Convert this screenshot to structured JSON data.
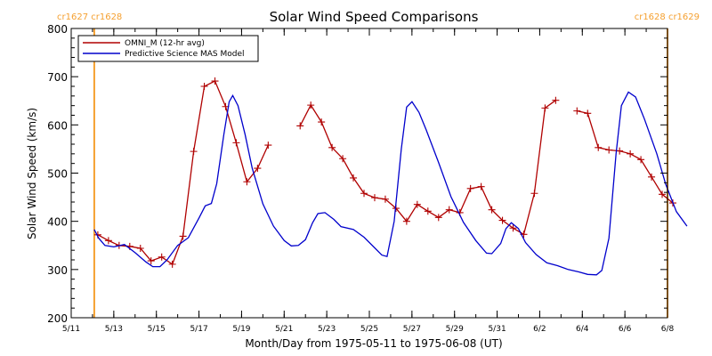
{
  "chart_data": {
    "type": "line",
    "title": "Solar Wind Speed Comparisons",
    "xlabel": "Month/Day from 1975-05-11 to 1975-06-08 (UT)",
    "ylabel": "Solar Wind Speed (km/s)",
    "xlim": [
      "1975-05-11",
      "1975-06-08"
    ],
    "ylim": [
      200,
      800
    ],
    "yticks": [
      200,
      300,
      400,
      500,
      600,
      700,
      800
    ],
    "xtick_labels": [
      {
        "date": "1975-05-11",
        "label": "5/11"
      },
      {
        "date": "1975-05-13",
        "label": "5/13"
      },
      {
        "date": "1975-05-15",
        "label": "5/15"
      },
      {
        "date": "1975-05-17",
        "label": "5/17"
      },
      {
        "date": "1975-05-19",
        "label": "5/19"
      },
      {
        "date": "1975-05-21",
        "label": "5/21"
      },
      {
        "date": "1975-05-23",
        "label": "5/23"
      },
      {
        "date": "1975-05-25",
        "label": "5/25"
      },
      {
        "date": "1975-05-27",
        "label": "5/27"
      },
      {
        "date": "1975-05-29",
        "label": "5/29"
      },
      {
        "date": "1975-05-31",
        "label": "5/31"
      },
      {
        "date": "1975-06-02",
        "label": "6/2"
      },
      {
        "date": "1975-06-04",
        "label": "6/4"
      },
      {
        "date": "1975-06-06",
        "label": "6/6"
      },
      {
        "date": "1975-06-08",
        "label": "6/8"
      }
    ],
    "legend_position": "top-left",
    "grid": false,
    "carrington_markers": [
      {
        "date": "1975-05-12 02:00",
        "label": "cr1627 cr1628",
        "label_side": "left",
        "color": "#f5a030"
      },
      {
        "date": "1975-06-08 00:00",
        "label": "cr1628 cr1629",
        "label_side": "right",
        "color": "#f5a030"
      }
    ],
    "series": [
      {
        "name": "OMNI_M (12-hr avg)",
        "color": "#b00000",
        "marker": "+",
        "segments": [
          [
            [
              "1975-05-12 06:00",
              372
            ],
            [
              "1975-05-12 18:00",
              360
            ],
            [
              "1975-05-13 06:00",
              350
            ],
            [
              "1975-05-13 18:00",
              348
            ],
            [
              "1975-05-14 06:00",
              344
            ],
            [
              "1975-05-14 18:00",
              318
            ],
            [
              "1975-05-15 06:00",
              326
            ],
            [
              "1975-05-15 18:00",
              311
            ],
            [
              "1975-05-16 06:00",
              369
            ],
            [
              "1975-05-16 18:00",
              545
            ],
            [
              "1975-05-17 06:00",
              680
            ],
            [
              "1975-05-17 18:00",
              691
            ],
            [
              "1975-05-18 06:00",
              638
            ],
            [
              "1975-05-18 18:00",
              563
            ],
            [
              "1975-05-19 06:00",
              482
            ],
            [
              "1975-05-19 18:00",
              510
            ],
            [
              "1975-05-20 06:00",
              558
            ]
          ],
          [
            [
              "1975-05-21 18:00",
              598
            ],
            [
              "1975-05-22 06:00",
              641
            ],
            [
              "1975-05-22 18:00",
              606
            ],
            [
              "1975-05-23 06:00",
              553
            ],
            [
              "1975-05-23 18:00",
              530
            ],
            [
              "1975-05-24 06:00",
              490
            ],
            [
              "1975-05-24 18:00",
              458
            ],
            [
              "1975-05-25 06:00",
              449
            ],
            [
              "1975-05-25 18:00",
              446
            ],
            [
              "1975-05-26 06:00",
              427
            ],
            [
              "1975-05-26 18:00",
              400
            ],
            [
              "1975-05-27 06:00",
              435
            ],
            [
              "1975-05-27 18:00",
              421
            ],
            [
              "1975-05-28 06:00",
              408
            ],
            [
              "1975-05-28 18:00",
              424
            ],
            [
              "1975-05-29 06:00",
              418
            ],
            [
              "1975-05-29 18:00",
              468
            ],
            [
              "1975-05-30 06:00",
              472
            ],
            [
              "1975-05-30 18:00",
              424
            ],
            [
              "1975-05-31 06:00",
              402
            ],
            [
              "1975-05-31 18:00",
              386
            ],
            [
              "1975-06-01 06:00",
              373
            ],
            [
              "1975-06-01 18:00",
              458
            ],
            [
              "1975-06-02 06:00",
              635
            ],
            [
              "1975-06-02 18:00",
              651
            ]
          ],
          [
            [
              "1975-06-03 18:00",
              629
            ],
            [
              "1975-06-04 06:00",
              624
            ],
            [
              "1975-06-04 18:00",
              553
            ],
            [
              "1975-06-05 06:00",
              548
            ],
            [
              "1975-06-05 18:00",
              546
            ],
            [
              "1975-06-06 06:00",
              540
            ],
            [
              "1975-06-06 18:00",
              528
            ],
            [
              "1975-06-07 06:00",
              492
            ],
            [
              "1975-06-07 18:00",
              456
            ],
            [
              "1975-06-08 06:00",
              438
            ]
          ]
        ]
      },
      {
        "name": "Predictive Science MAS Model",
        "color": "#0000cc",
        "marker": "none",
        "points": [
          [
            "1975-05-12 02:00",
            383
          ],
          [
            "1975-05-12 07:00",
            365
          ],
          [
            "1975-05-12 14:00",
            350
          ],
          [
            "1975-05-13 00:00",
            347
          ],
          [
            "1975-05-13 12:00",
            352
          ],
          [
            "1975-05-14 00:00",
            335
          ],
          [
            "1975-05-14 12:00",
            316
          ],
          [
            "1975-05-14 20:00",
            306
          ],
          [
            "1975-05-15 04:00",
            306
          ],
          [
            "1975-05-15 12:00",
            320
          ],
          [
            "1975-05-16 00:00",
            350
          ],
          [
            "1975-05-16 12:00",
            366
          ],
          [
            "1975-05-17 00:00",
            407
          ],
          [
            "1975-05-17 07:00",
            432
          ],
          [
            "1975-05-17 14:00",
            437
          ],
          [
            "1975-05-17 20:00",
            478
          ],
          [
            "1975-05-18 04:00",
            580
          ],
          [
            "1975-05-18 10:00",
            648
          ],
          [
            "1975-05-18 14:00",
            661
          ],
          [
            "1975-05-18 20:00",
            640
          ],
          [
            "1975-05-19 04:00",
            580
          ],
          [
            "1975-05-19 12:00",
            510
          ],
          [
            "1975-05-20 00:00",
            436
          ],
          [
            "1975-05-20 12:00",
            390
          ],
          [
            "1975-05-21 00:00",
            360
          ],
          [
            "1975-05-21 08:00",
            349
          ],
          [
            "1975-05-21 16:00",
            350
          ],
          [
            "1975-05-22 00:00",
            362
          ],
          [
            "1975-05-22 08:00",
            397
          ],
          [
            "1975-05-22 14:00",
            416
          ],
          [
            "1975-05-22 22:00",
            418
          ],
          [
            "1975-05-23 08:00",
            404
          ],
          [
            "1975-05-23 16:00",
            389
          ],
          [
            "1975-05-24 06:00",
            383
          ],
          [
            "1975-05-24 18:00",
            367
          ],
          [
            "1975-05-25 06:00",
            345
          ],
          [
            "1975-05-25 14:00",
            330
          ],
          [
            "1975-05-25 20:00",
            327
          ],
          [
            "1975-05-26 04:00",
            400
          ],
          [
            "1975-05-26 12:00",
            550
          ],
          [
            "1975-05-26 18:00",
            637
          ],
          [
            "1975-05-27 00:00",
            648
          ],
          [
            "1975-05-27 08:00",
            626
          ],
          [
            "1975-05-27 16:00",
            590
          ],
          [
            "1975-05-28 06:00",
            522
          ],
          [
            "1975-05-28 20:00",
            451
          ],
          [
            "1975-05-29 10:00",
            398
          ],
          [
            "1975-05-30 00:00",
            360
          ],
          [
            "1975-05-30 12:00",
            334
          ],
          [
            "1975-05-30 18:00",
            333
          ],
          [
            "1975-05-31 04:00",
            354
          ],
          [
            "1975-05-31 10:00",
            385
          ],
          [
            "1975-05-31 16:00",
            397
          ],
          [
            "1975-06-01 00:00",
            385
          ],
          [
            "1975-06-01 08:00",
            356
          ],
          [
            "1975-06-01 20:00",
            331
          ],
          [
            "1975-06-02 08:00",
            314
          ],
          [
            "1975-06-02 20:00",
            308
          ],
          [
            "1975-06-03 08:00",
            300
          ],
          [
            "1975-06-03 20:00",
            295
          ],
          [
            "1975-06-04 06:00",
            290
          ],
          [
            "1975-06-04 16:00",
            289
          ],
          [
            "1975-06-04 22:00",
            298
          ],
          [
            "1975-06-05 06:00",
            365
          ],
          [
            "1975-06-05 14:00",
            540
          ],
          [
            "1975-06-05 20:00",
            640
          ],
          [
            "1975-06-06 04:00",
            668
          ],
          [
            "1975-06-06 12:00",
            658
          ],
          [
            "1975-06-06 22:00",
            612
          ],
          [
            "1975-06-07 12:00",
            540
          ],
          [
            "1975-06-07 22:00",
            477
          ],
          [
            "1975-06-08 10:00",
            420
          ],
          [
            "1975-06-08 22:00",
            390
          ]
        ]
      }
    ]
  }
}
